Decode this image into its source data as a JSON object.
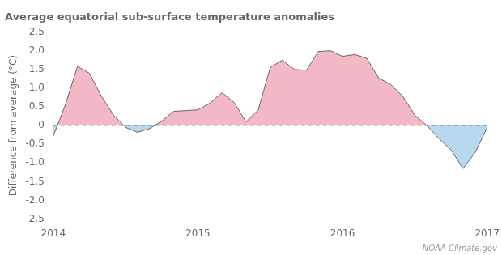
{
  "chart_data": {
    "type": "area",
    "title": "Average equatorial sub-surface temperature anomalies",
    "ylabel": "Difference from average (°C)",
    "annotations": [
      "NOAA Climate.gov"
    ],
    "x": [
      2014.0,
      2014.083,
      2014.167,
      2014.25,
      2014.333,
      2014.417,
      2014.5,
      2014.583,
      2014.667,
      2014.75,
      2014.833,
      2014.917,
      2015.0,
      2015.083,
      2015.167,
      2015.25,
      2015.333,
      2015.417,
      2015.5,
      2015.583,
      2015.667,
      2015.75,
      2015.833,
      2015.917,
      2016.0,
      2016.083,
      2016.167,
      2016.25,
      2016.333,
      2016.417,
      2016.5,
      2016.583,
      2016.667,
      2016.75,
      2016.833,
      2016.917,
      2017.0
    ],
    "values": [
      -0.28,
      0.55,
      1.58,
      1.4,
      0.78,
      0.28,
      -0.05,
      -0.18,
      -0.08,
      0.12,
      0.38,
      0.4,
      0.42,
      0.6,
      0.88,
      0.62,
      0.1,
      0.42,
      1.55,
      1.75,
      1.5,
      1.48,
      1.98,
      2.0,
      1.85,
      1.9,
      1.8,
      1.27,
      1.1,
      0.78,
      0.28,
      0.0,
      -0.35,
      -0.65,
      -1.15,
      -0.72,
      -0.05
    ],
    "color": "#666666",
    "colors": [
      "#f2b8c6",
      "#b8d8f0"
    ],
    "xlim": [
      2014,
      2017
    ],
    "xticks": [
      2014,
      2015,
      2016,
      2017
    ],
    "ylim": [
      -2.5,
      2.5
    ],
    "yticks": [
      -2.5,
      {
        "value": -2,
        "label": "-2.0"
      },
      -1.5,
      {
        "value": -1,
        "label": "-1.0"
      },
      -0.5,
      0,
      0.5,
      {
        "value": 1,
        "label": "1.0"
      },
      1.5,
      {
        "value": 2,
        "label": "2.0"
      },
      2.5
    ],
    "grid": false
  }
}
